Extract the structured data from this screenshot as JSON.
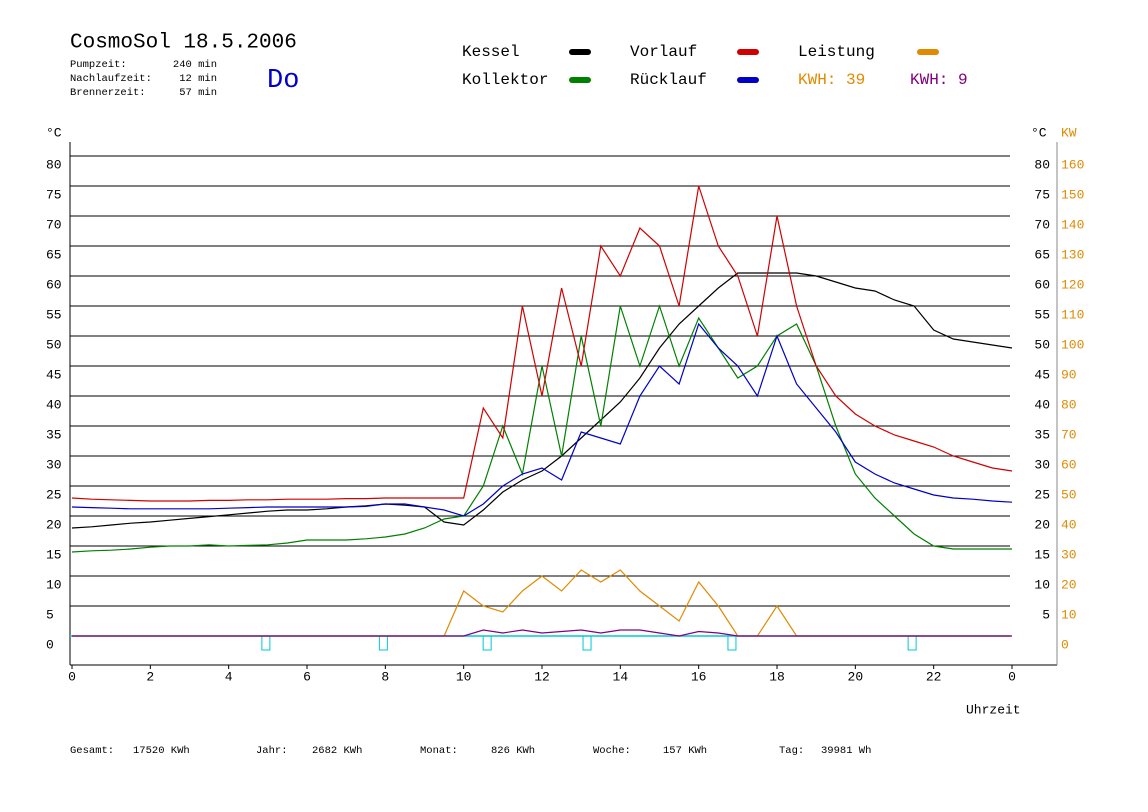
{
  "header": {
    "title": "CosmoSol 18.5.2006",
    "day": "Do",
    "stats": [
      {
        "label": "Pumpzeit:",
        "value": "240 min"
      },
      {
        "label": "Nachlaufzeit:",
        "value": "12 min"
      },
      {
        "label": "Brennerzeit:",
        "value": "57 min"
      }
    ]
  },
  "footer": [
    {
      "label": "Gesamt:",
      "value": "17520 KWh"
    },
    {
      "label": "Jahr:",
      "value": "2682 KWh"
    },
    {
      "label": "Monat:",
      "value": "826 KWh"
    },
    {
      "label": "Woche:",
      "value": "157 KWh"
    },
    {
      "label": "Tag:",
      "value": "39981 Wh"
    }
  ],
  "chart_data": {
    "type": "line",
    "xlabel": "Uhrzeit",
    "ylabel": "°C",
    "ylabel_right": "°C",
    "y2label": "KW",
    "x": [
      0,
      0.5,
      1,
      1.5,
      2,
      2.5,
      3,
      3.5,
      4,
      4.5,
      5,
      5.5,
      6,
      6.5,
      7,
      7.5,
      8,
      8.5,
      9,
      9.5,
      10,
      10.5,
      11,
      11.5,
      12,
      12.5,
      13,
      13.5,
      14,
      14.5,
      15,
      15.5,
      16,
      16.5,
      17,
      17.5,
      18,
      18.5,
      19,
      19.5,
      20,
      20.5,
      21,
      21.5,
      22,
      22.5,
      23,
      23.5,
      24
    ],
    "xlim": [
      0,
      24
    ],
    "xticks": [
      0,
      2,
      4,
      6,
      8,
      10,
      12,
      14,
      16,
      18,
      20,
      22,
      {
        "value": 24,
        "label": "0"
      }
    ],
    "ylim": [
      -5,
      82.5
    ],
    "yticks": [
      0,
      5,
      10,
      15,
      20,
      25,
      30,
      35,
      40,
      45,
      50,
      55,
      60,
      65,
      70,
      75,
      80
    ],
    "y2lim": [
      -10,
      165
    ],
    "y2ticks": [
      0,
      10,
      20,
      30,
      40,
      50,
      60,
      70,
      80,
      90,
      100,
      110,
      120,
      130,
      140,
      150,
      160
    ],
    "grid": true,
    "series": [
      {
        "name": "Kessel",
        "color": "#000000",
        "values": [
          18,
          18.2,
          18.5,
          18.8,
          19,
          19.3,
          19.6,
          19.9,
          20.2,
          20.5,
          20.8,
          21,
          21,
          21.2,
          21.5,
          21.7,
          22,
          21.8,
          21.5,
          19,
          18.5,
          21,
          24,
          26,
          27.5,
          30,
          33,
          36,
          39,
          43,
          48,
          52,
          55,
          58,
          60.5,
          60.5,
          60.5,
          60.5,
          60,
          59,
          58,
          57.5,
          56,
          55,
          51,
          49.5,
          49,
          48.5,
          48
        ]
      },
      {
        "name": "Kollektor",
        "color": "#008000",
        "values": [
          14,
          14.2,
          14.3,
          14.5,
          14.8,
          15,
          15,
          15.2,
          15,
          15.1,
          15.2,
          15.5,
          16,
          16,
          16,
          16.2,
          16.5,
          17,
          18,
          19.5,
          20,
          25,
          35,
          27,
          45,
          30,
          50,
          35,
          55,
          45,
          55,
          45,
          53,
          48,
          43,
          45,
          50,
          52,
          45,
          35,
          27,
          23,
          20,
          17,
          15,
          14.5,
          14.5,
          14.5,
          14.5
        ]
      },
      {
        "name": "Vorlauf",
        "color": "#d00000",
        "values": [
          23,
          22.8,
          22.7,
          22.6,
          22.5,
          22.5,
          22.5,
          22.6,
          22.6,
          22.7,
          22.7,
          22.8,
          22.8,
          22.8,
          22.9,
          22.9,
          23,
          23,
          23,
          23,
          23,
          38,
          33,
          55,
          40,
          58,
          45,
          65,
          60,
          68,
          65,
          55,
          75,
          65,
          60,
          50,
          70,
          55,
          45,
          40,
          37,
          35,
          33.5,
          32.5,
          31.5,
          30,
          29,
          28,
          27.5
        ]
      },
      {
        "name": "Rücklauf",
        "color": "#0000c8",
        "values": [
          21.5,
          21.4,
          21.3,
          21.2,
          21.2,
          21.2,
          21.2,
          21.2,
          21.3,
          21.4,
          21.5,
          21.5,
          21.5,
          21.5,
          21.5,
          21.6,
          22,
          22,
          21.5,
          21,
          20,
          22,
          25,
          27,
          28,
          26,
          34,
          33,
          32,
          40,
          45,
          42,
          52,
          48,
          45,
          40,
          50,
          42,
          38,
          34,
          29,
          27,
          25.5,
          24.5,
          23.5,
          23,
          22.8,
          22.5,
          22.3
        ]
      },
      {
        "name": "Leistung",
        "color": "#e08a00",
        "axis": "y2",
        "values": [
          0,
          0,
          0,
          0,
          0,
          0,
          0,
          0,
          0,
          0,
          0,
          0,
          0,
          0,
          0,
          0,
          0,
          0,
          0,
          0,
          15,
          10,
          8,
          15,
          20,
          15,
          22,
          18,
          22,
          15,
          10,
          5,
          18,
          10,
          0,
          0,
          10,
          0,
          0,
          0,
          0,
          0,
          0,
          0,
          0,
          0,
          0,
          0,
          0
        ]
      },
      {
        "color": "#800080",
        "axis": "y2",
        "values": [
          0,
          0,
          0,
          0,
          0,
          0,
          0,
          0,
          0,
          0,
          0,
          0,
          0,
          0,
          0,
          0,
          0,
          0,
          0,
          0,
          0,
          2,
          1,
          2,
          1,
          1.5,
          2,
          1,
          2,
          2,
          1,
          0,
          1.5,
          1,
          0,
          0,
          0,
          0,
          0,
          0,
          0,
          0,
          0,
          0,
          0,
          0,
          0,
          0,
          0
        ]
      }
    ],
    "kwh_labels": [
      {
        "text": "KWH: 39",
        "color": "#e08a00"
      },
      {
        "text": "KWH: 9",
        "color": "#800080"
      }
    ],
    "markers": {
      "color": "#00c8d8",
      "x": [
        4.95,
        7.95,
        10.6,
        13.15,
        16.85,
        21.45
      ]
    }
  }
}
